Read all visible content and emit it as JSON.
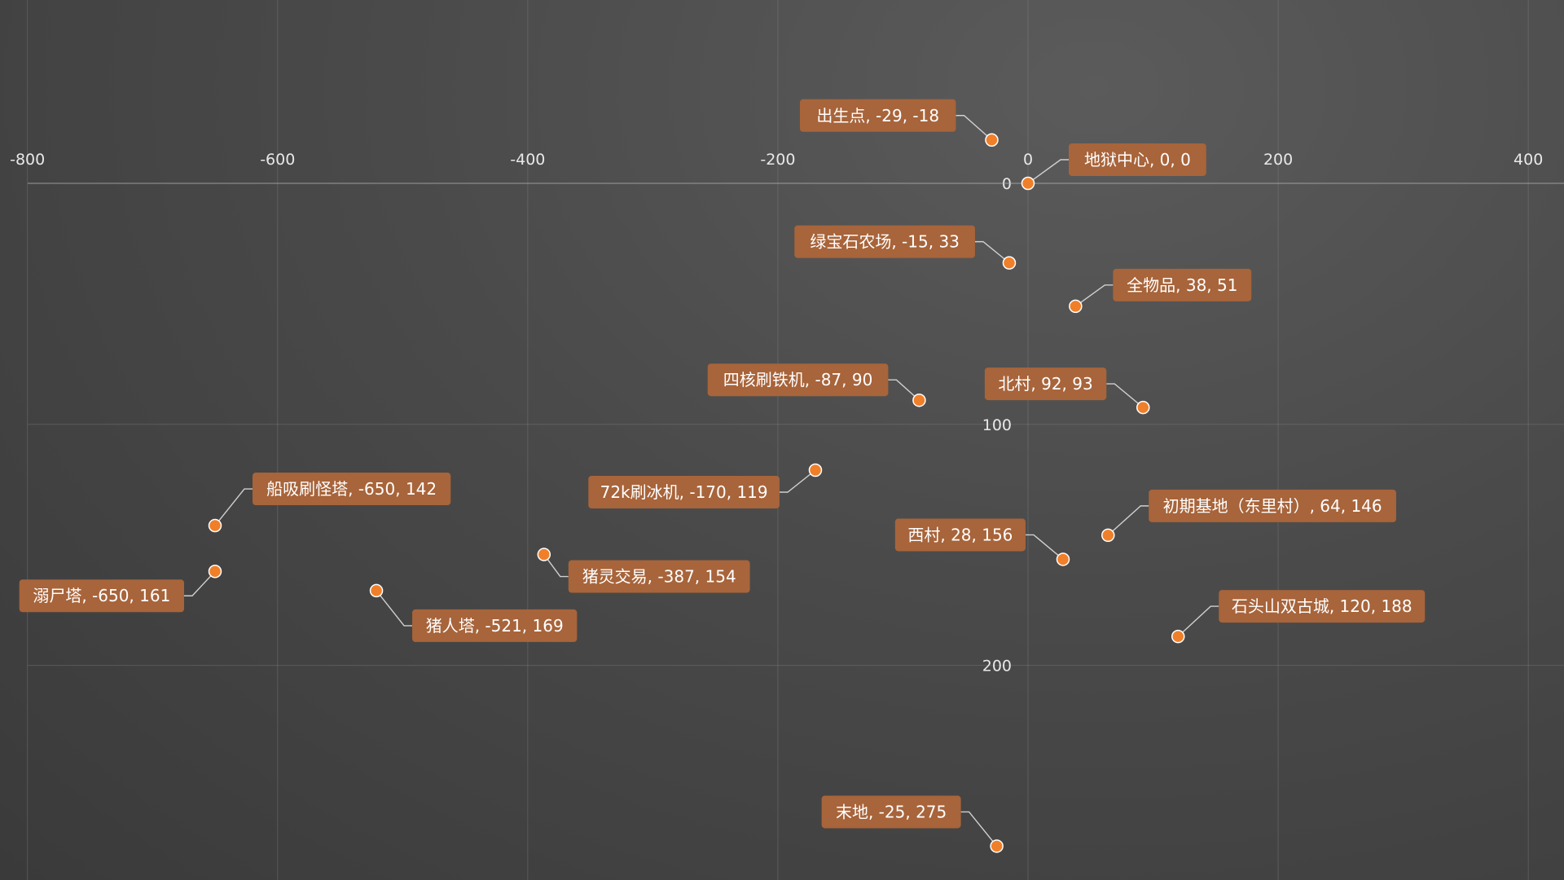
{
  "chart_data": {
    "type": "scatter",
    "title": "",
    "xlabel": "",
    "ylabel": "",
    "xlim": [
      -800,
      400
    ],
    "ylim": [
      0,
      275
    ],
    "y_inverted": true,
    "grid": true,
    "x_ticks": [
      "-800",
      "-600",
      "-400",
      "-200",
      "0",
      "200",
      "400"
    ],
    "y_ticks": [
      "0",
      "100",
      "200"
    ],
    "points": [
      {
        "name": "出生点",
        "x": -29,
        "y": -18,
        "label": "出生点, -29, -18",
        "side": "left"
      },
      {
        "name": "地狱中心",
        "x": 0,
        "y": 0,
        "label": "地狱中心, 0, 0",
        "side": "right"
      },
      {
        "name": "绿宝石农场",
        "x": -15,
        "y": 33,
        "label": "绿宝石农场, -15, 33",
        "side": "left"
      },
      {
        "name": "全物品",
        "x": 38,
        "y": 51,
        "label": "全物品, 38, 51",
        "side": "right"
      },
      {
        "name": "四核刷铁机",
        "x": -87,
        "y": 90,
        "label": "四核刷铁机, -87, 90",
        "side": "left"
      },
      {
        "name": "北村",
        "x": 92,
        "y": 93,
        "label": "北村, 92, 93",
        "side": "left"
      },
      {
        "name": "72k刷冰机",
        "x": -170,
        "y": 119,
        "label": "72k刷冰机, -170, 119",
        "side": "left"
      },
      {
        "name": "船吸刷怪塔",
        "x": -650,
        "y": 142,
        "label": "船吸刷怪塔, -650, 142",
        "side": "right"
      },
      {
        "name": "初期基地（东里村）",
        "x": 64,
        "y": 146,
        "label": "初期基地（东里村）, 64, 146",
        "side": "right"
      },
      {
        "name": "西村",
        "x": 28,
        "y": 156,
        "label": "西村, 28, 156",
        "side": "left"
      },
      {
        "name": "猪灵交易",
        "x": -387,
        "y": 154,
        "label": "猪灵交易, -387, 154",
        "side": "right"
      },
      {
        "name": "溺尸塔",
        "x": -650,
        "y": 161,
        "label": "溺尸塔, -650, 161",
        "side": "left"
      },
      {
        "name": "猪人塔",
        "x": -521,
        "y": 169,
        "label": "猪人塔, -521, 169",
        "side": "right"
      },
      {
        "name": "石头山双古城",
        "x": 120,
        "y": 188,
        "label": "石头山双古城, 120, 188",
        "side": "right"
      },
      {
        "name": "末地",
        "x": -25,
        "y": 275,
        "label": "末地, -25, 275",
        "side": "left"
      }
    ],
    "colors": {
      "point": "#f07f2a",
      "label_bg": "#a8643a",
      "background": "#4a4a4a"
    }
  }
}
